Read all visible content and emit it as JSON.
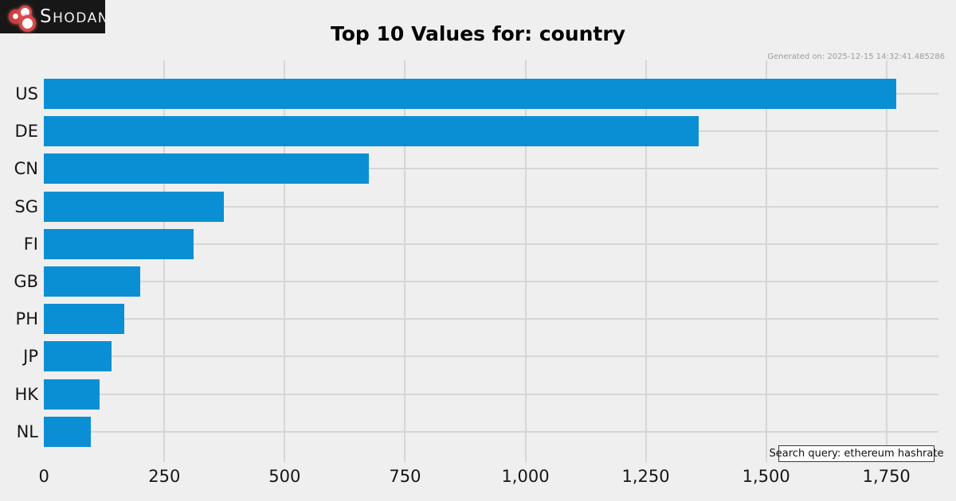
{
  "header": {
    "logo_text_s": "S",
    "logo_text_rest": "HODAN",
    "title": "Top 10 Values for: country",
    "generated_on": "Generated on: 2025-12-15 14:32:41.485286"
  },
  "footer": {
    "search_query": "Search query: ethereum hashrate"
  },
  "colors": {
    "background": "#efefef",
    "bar": "#0a8fd4",
    "grid": "#d6d6d6",
    "logo_bg": "#171717",
    "logo_red": "#d84a4a"
  },
  "chart_data": {
    "type": "bar",
    "orientation": "horizontal",
    "title": "Top 10 Values for: country",
    "categories": [
      "US",
      "DE",
      "CN",
      "SG",
      "FI",
      "GB",
      "PH",
      "JP",
      "HK",
      "NL"
    ],
    "values": [
      1770,
      1360,
      675,
      374,
      310,
      200,
      167,
      141,
      116,
      97
    ],
    "xlabel": "",
    "ylabel": "",
    "xlim": [
      0,
      1858
    ],
    "xticks": [
      0,
      250,
      500,
      750,
      1000,
      1250,
      1500,
      1750
    ],
    "xtick_labels": [
      "0",
      "250",
      "500",
      "750",
      "1,000",
      "1,250",
      "1,500",
      "1,750"
    ],
    "grid": true,
    "legend": false
  }
}
